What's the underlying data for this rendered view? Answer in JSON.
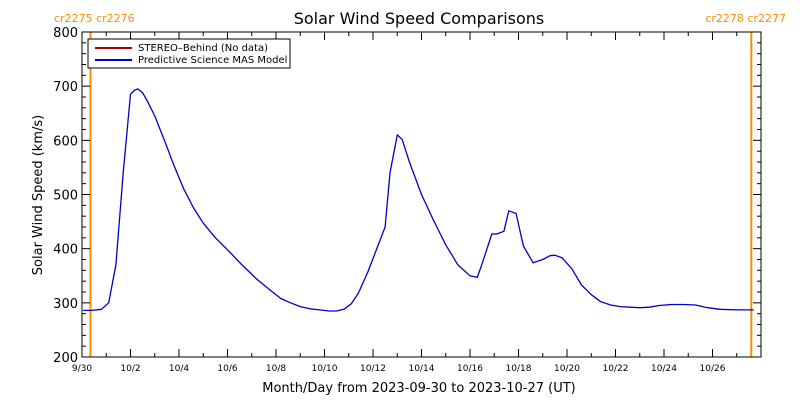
{
  "chart_data": {
    "type": "line",
    "title": "Solar Wind Speed Comparisons",
    "xlabel": "Month/Day from 2023-09-30 to 2023-10-27 (UT)",
    "ylabel": "Solar Wind Speed (km/s)",
    "x_units": "days since 2023-09-30 00:00 UT",
    "xlim": [
      0,
      28
    ],
    "ylim": [
      200,
      800
    ],
    "y_ticks": [
      200,
      300,
      400,
      500,
      600,
      700,
      800
    ],
    "x_ticks": [
      {
        "day": 0,
        "label": "9/30"
      },
      {
        "day": 2,
        "label": "10/2"
      },
      {
        "day": 4,
        "label": "10/4"
      },
      {
        "day": 6,
        "label": "10/6"
      },
      {
        "day": 8,
        "label": "10/8"
      },
      {
        "day": 10,
        "label": "10/10"
      },
      {
        "day": 12,
        "label": "10/12"
      },
      {
        "day": 14,
        "label": "10/14"
      },
      {
        "day": 16,
        "label": "10/16"
      },
      {
        "day": 18,
        "label": "10/18"
      },
      {
        "day": 20,
        "label": "10/20"
      },
      {
        "day": 22,
        "label": "10/22"
      },
      {
        "day": 24,
        "label": "10/24"
      },
      {
        "day": 26,
        "label": "10/26"
      }
    ],
    "grid": false,
    "legend_position": "top-left",
    "carrington_markers": [
      {
        "day": 0.35,
        "left_label": "cr2275",
        "right_label": "cr2276",
        "label_side": "left"
      },
      {
        "day": 27.6,
        "left_label": "cr2278",
        "right_label": "cr2277",
        "label_side": "right"
      }
    ],
    "series": [
      {
        "name": "STEREO–Behind (No data)",
        "color": "#aa0000",
        "x": [],
        "y": []
      },
      {
        "name": "Predictive Science MAS Model",
        "color": "#0000cc",
        "x": [
          0.05,
          0.4,
          0.8,
          1.1,
          1.4,
          1.7,
          2.0,
          2.15,
          2.3,
          2.5,
          2.7,
          3.0,
          3.4,
          3.8,
          4.2,
          4.6,
          5.0,
          5.5,
          6.0,
          6.6,
          7.2,
          7.8,
          8.2,
          8.6,
          9.0,
          9.4,
          9.8,
          10.2,
          10.5,
          10.8,
          11.1,
          11.4,
          11.8,
          12.2,
          12.5,
          12.7,
          13.0,
          13.2,
          13.5,
          14.0,
          14.5,
          15.0,
          15.5,
          16.0,
          16.3,
          16.5,
          16.9,
          17.1,
          17.4,
          17.6,
          17.9,
          18.2,
          18.6,
          19.0,
          19.3,
          19.5,
          19.8,
          20.2,
          20.6,
          21.0,
          21.4,
          21.8,
          22.2,
          22.6,
          23.0,
          23.4,
          23.8,
          24.3,
          24.8,
          25.3,
          25.8,
          26.3,
          27.0,
          27.7
        ],
        "y": [
          286,
          286,
          288,
          300,
          370,
          540,
          685,
          692,
          695,
          688,
          672,
          645,
          600,
          553,
          510,
          475,
          447,
          420,
          398,
          370,
          344,
          322,
          308,
          300,
          293,
          289,
          287,
          285,
          285,
          288,
          298,
          318,
          358,
          405,
          440,
          540,
          610,
          602,
          560,
          500,
          452,
          407,
          370,
          350,
          347,
          372,
          427,
          427,
          432,
          470,
          465,
          405,
          374,
          380,
          387,
          388,
          383,
          363,
          333,
          315,
          302,
          296,
          293,
          292,
          291,
          292,
          295,
          297,
          297,
          296,
          291,
          288,
          287,
          287
        ]
      }
    ]
  }
}
